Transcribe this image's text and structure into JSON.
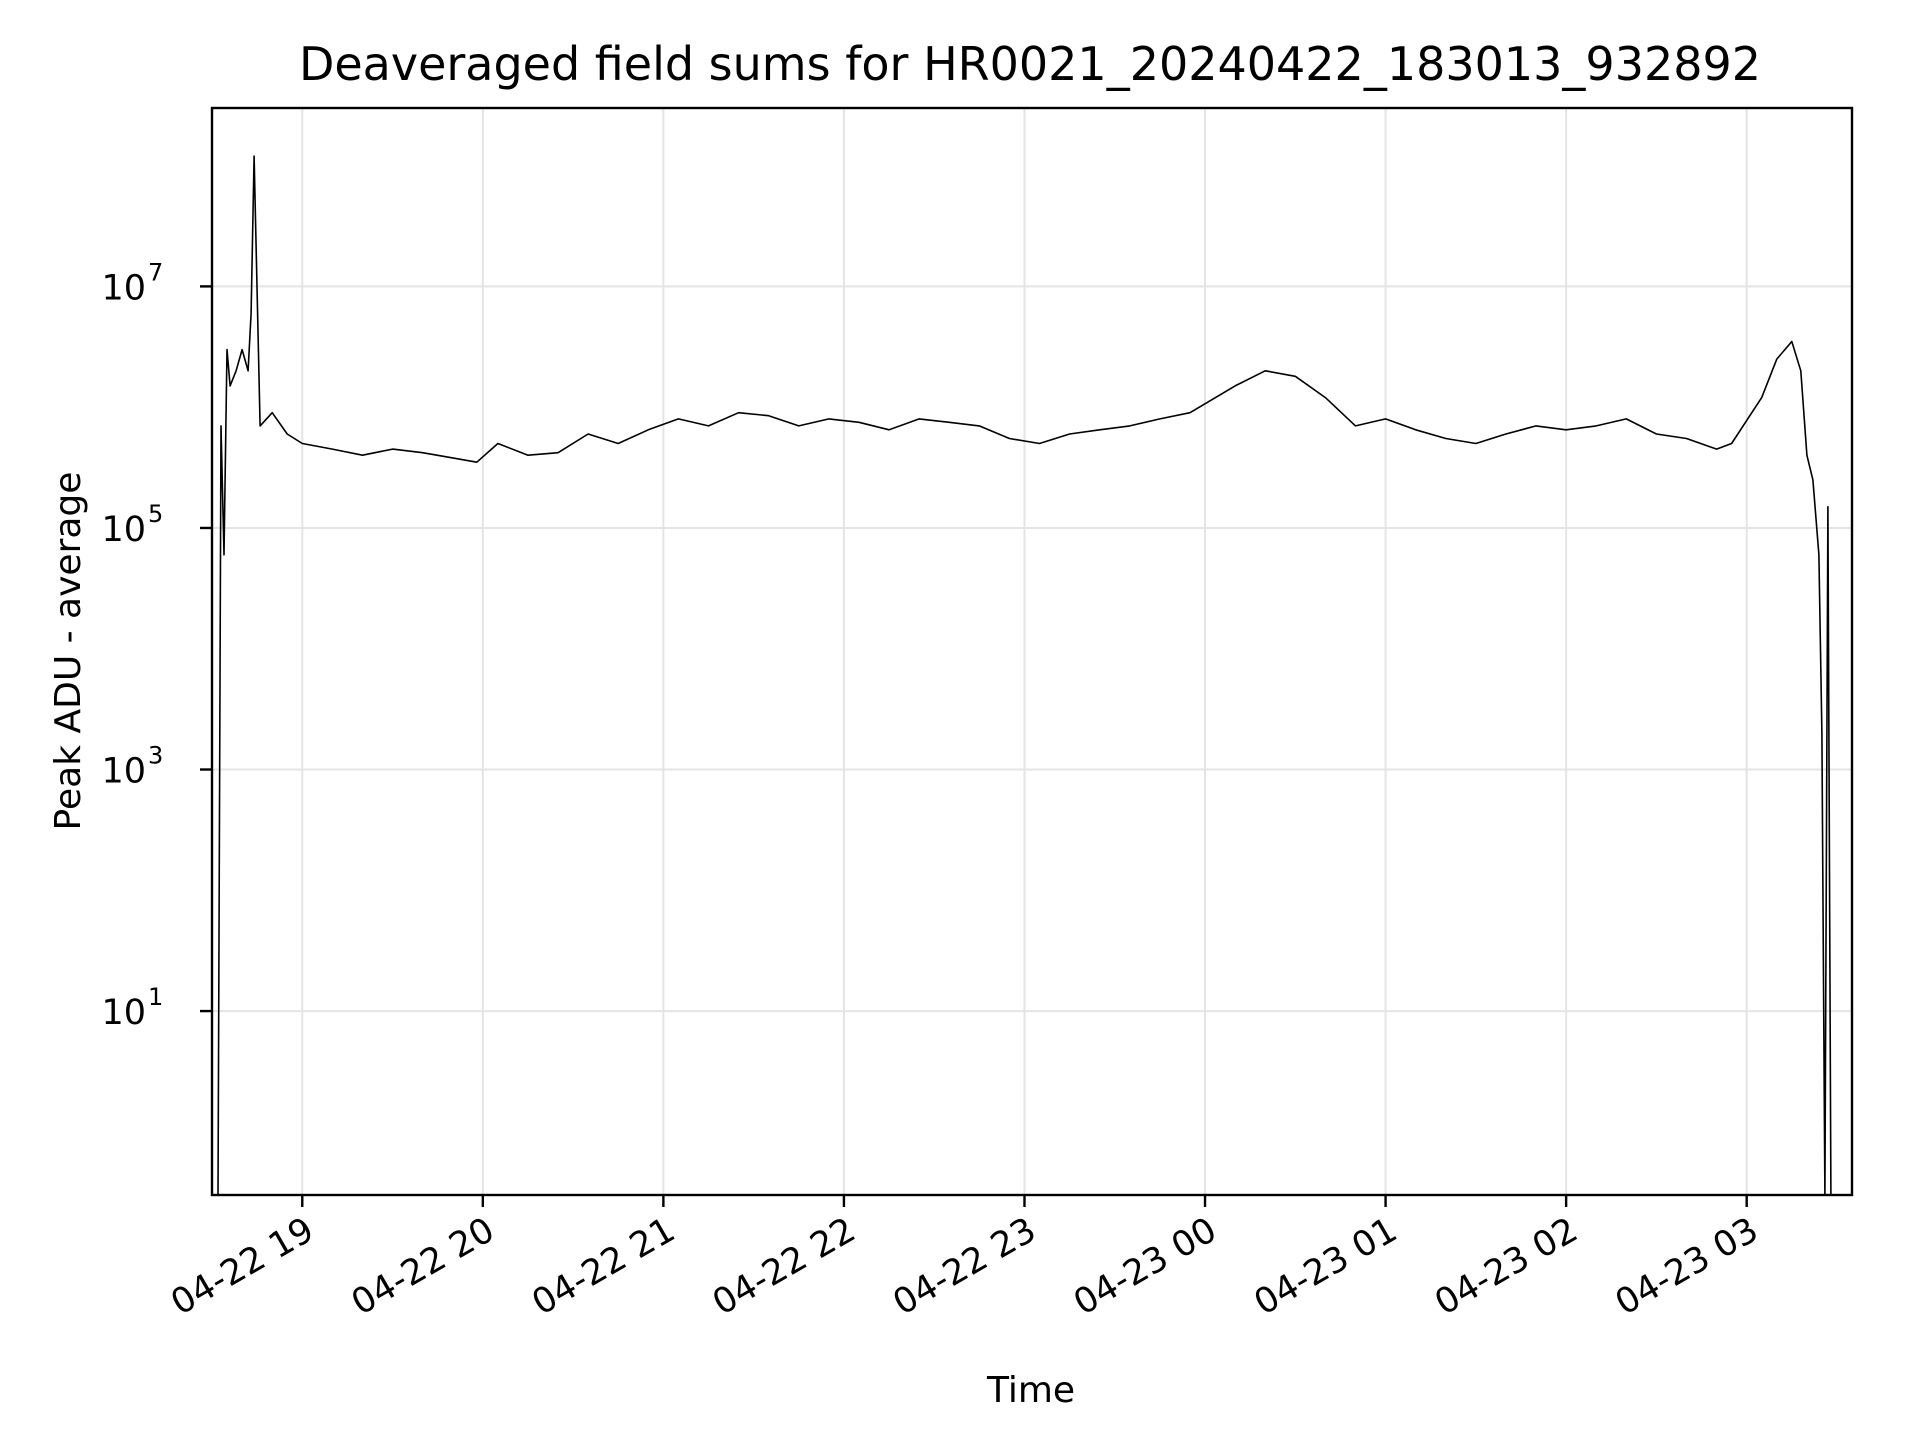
{
  "chart_data": {
    "type": "line",
    "title": "Deaveraged field sums for HR0021_20240422_183013_932892",
    "xlabel": "Time",
    "ylabel": "Peak ADU - average",
    "yscale": "log",
    "grid": true,
    "line_color": "#000000",
    "xlim": [
      "2024-04-22 18:30",
      "2024-04-23 03:35"
    ],
    "ylim": [
      0.3,
      300000000
    ],
    "xticks": [
      {
        "label": "04-22 19",
        "value": "2024-04-22 19:00"
      },
      {
        "label": "04-22 20",
        "value": "2024-04-22 20:00"
      },
      {
        "label": "04-22 21",
        "value": "2024-04-22 21:00"
      },
      {
        "label": "04-22 22",
        "value": "2024-04-22 22:00"
      },
      {
        "label": "04-22 23",
        "value": "2024-04-22 23:00"
      },
      {
        "label": "04-23 00",
        "value": "2024-04-23 00:00"
      },
      {
        "label": "04-23 01",
        "value": "2024-04-23 01:00"
      },
      {
        "label": "04-23 02",
        "value": "2024-04-23 02:00"
      },
      {
        "label": "04-23 03",
        "value": "2024-04-23 03:00"
      }
    ],
    "yticks": [
      {
        "base": "10",
        "exp": "1",
        "value": 10
      },
      {
        "base": "10",
        "exp": "3",
        "value": 1000
      },
      {
        "base": "10",
        "exp": "5",
        "value": 100000
      },
      {
        "base": "10",
        "exp": "7",
        "value": 10000000
      }
    ],
    "series": [
      {
        "x": [
          "2024-04-22 18:32",
          "2024-04-22 18:33",
          "2024-04-22 18:34",
          "2024-04-22 18:35",
          "2024-04-22 18:36",
          "2024-04-22 18:38",
          "2024-04-22 18:40",
          "2024-04-22 18:42",
          "2024-04-22 18:43",
          "2024-04-22 18:44",
          "2024-04-22 18:46",
          "2024-04-22 18:50",
          "2024-04-22 18:55",
          "2024-04-22 19:00",
          "2024-04-22 19:10",
          "2024-04-22 19:20",
          "2024-04-22 19:30",
          "2024-04-22 19:40",
          "2024-04-22 19:50",
          "2024-04-22 19:58",
          "2024-04-22 20:05",
          "2024-04-22 20:15",
          "2024-04-22 20:25",
          "2024-04-22 20:35",
          "2024-04-22 20:45",
          "2024-04-22 20:55",
          "2024-04-22 21:05",
          "2024-04-22 21:15",
          "2024-04-22 21:25",
          "2024-04-22 21:35",
          "2024-04-22 21:45",
          "2024-04-22 21:55",
          "2024-04-22 22:05",
          "2024-04-22 22:15",
          "2024-04-22 22:25",
          "2024-04-22 22:35",
          "2024-04-22 22:45",
          "2024-04-22 22:55",
          "2024-04-22 23:05",
          "2024-04-22 23:15",
          "2024-04-22 23:25",
          "2024-04-22 23:35",
          "2024-04-22 23:45",
          "2024-04-22 23:55",
          "2024-04-23 00:10",
          "2024-04-23 00:20",
          "2024-04-23 00:30",
          "2024-04-23 00:40",
          "2024-04-23 00:50",
          "2024-04-23 01:00",
          "2024-04-23 01:10",
          "2024-04-23 01:20",
          "2024-04-23 01:30",
          "2024-04-23 01:40",
          "2024-04-23 01:50",
          "2024-04-23 02:00",
          "2024-04-23 02:10",
          "2024-04-23 02:20",
          "2024-04-23 02:30",
          "2024-04-23 02:40",
          "2024-04-23 02:50",
          "2024-04-23 02:55",
          "2024-04-23 03:05",
          "2024-04-23 03:10",
          "2024-04-23 03:15",
          "2024-04-23 03:18",
          "2024-04-23 03:20",
          "2024-04-23 03:22",
          "2024-04-23 03:24",
          "2024-04-23 03:25",
          "2024-04-23 03:26",
          "2024-04-23 03:27",
          "2024-04-23 03:28"
        ],
        "y": [
          0.3,
          700000,
          60000,
          3000000,
          1500000,
          2000000,
          3000000,
          2000000,
          6000000,
          120000000,
          700000,
          900000,
          600000,
          500000,
          450000,
          400000,
          450000,
          420000,
          380000,
          350000,
          500000,
          400000,
          420000,
          600000,
          500000,
          650000,
          800000,
          700000,
          900000,
          850000,
          700000,
          800000,
          750000,
          650000,
          800000,
          750000,
          700000,
          550000,
          500000,
          600000,
          650000,
          700000,
          800000,
          900000,
          1500000,
          2000000,
          1800000,
          1200000,
          700000,
          800000,
          650000,
          550000,
          500000,
          600000,
          700000,
          650000,
          700000,
          800000,
          600000,
          550000,
          450000,
          500000,
          1200000,
          2500000,
          3500000,
          2000000,
          400000,
          250000,
          60000,
          2000,
          0.3,
          150000,
          0.3
        ]
      }
    ]
  }
}
